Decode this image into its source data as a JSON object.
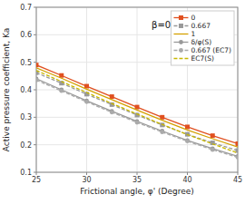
{
  "chart_data": {
    "type": "line",
    "title": "β=0",
    "x_label": "Frictional angle, φ' (Degree)",
    "y_label": "Active pressure coefficient, Ka",
    "x": [
      25,
      27.5,
      30,
      32.5,
      35,
      37.5,
      40,
      42.5,
      45
    ],
    "series": [
      {
        "name": "0",
        "color": "#e05020",
        "line_style": "solid",
        "marker": "square",
        "values": [
          0.49,
          0.452,
          0.413,
          0.375,
          0.337,
          0.3,
          0.265,
          0.233,
          0.204
        ]
      },
      {
        "name": "0.667",
        "color": "#999999",
        "line_style": "dashed",
        "marker": "square",
        "values": [
          0.462,
          0.424,
          0.384,
          0.346,
          0.308,
          0.272,
          0.238,
          0.207,
          0.179
        ]
      },
      {
        "name": "1",
        "color": "#d4a000",
        "line_style": "solid",
        "marker": "none",
        "values": [
          0.48,
          0.442,
          0.402,
          0.364,
          0.326,
          0.289,
          0.254,
          0.222,
          0.192
        ]
      },
      {
        "name": "δ/φ(S)",
        "color": "#999999",
        "line_style": "solid",
        "marker": "circle",
        "values": [
          0.44,
          0.4,
          0.36,
          0.322,
          0.285,
          0.25,
          0.216,
          0.186,
          0.158
        ]
      },
      {
        "name": "0.667 (EC7)",
        "color": "#aaaaaa",
        "line_style": "dashed",
        "marker": "circle",
        "values": [
          0.435,
          0.396,
          0.356,
          0.318,
          0.281,
          0.246,
          0.213,
          0.182,
          0.154
        ]
      },
      {
        "name": "EC7(S)",
        "color": "#c8b800",
        "line_style": "dashed",
        "marker": "none",
        "values": [
          0.47,
          0.43,
          0.39,
          0.35,
          0.312,
          0.274,
          0.237,
          0.203,
          0.17
        ]
      }
    ],
    "xlim": [
      25,
      45
    ],
    "ylim": [
      0.1,
      0.7
    ],
    "xticks": [
      25,
      30,
      35,
      40,
      45
    ],
    "yticks": [
      0.1,
      0.2,
      0.3,
      0.4,
      0.5,
      0.6,
      0.7
    ],
    "grid": true,
    "legend": "upper right"
  }
}
